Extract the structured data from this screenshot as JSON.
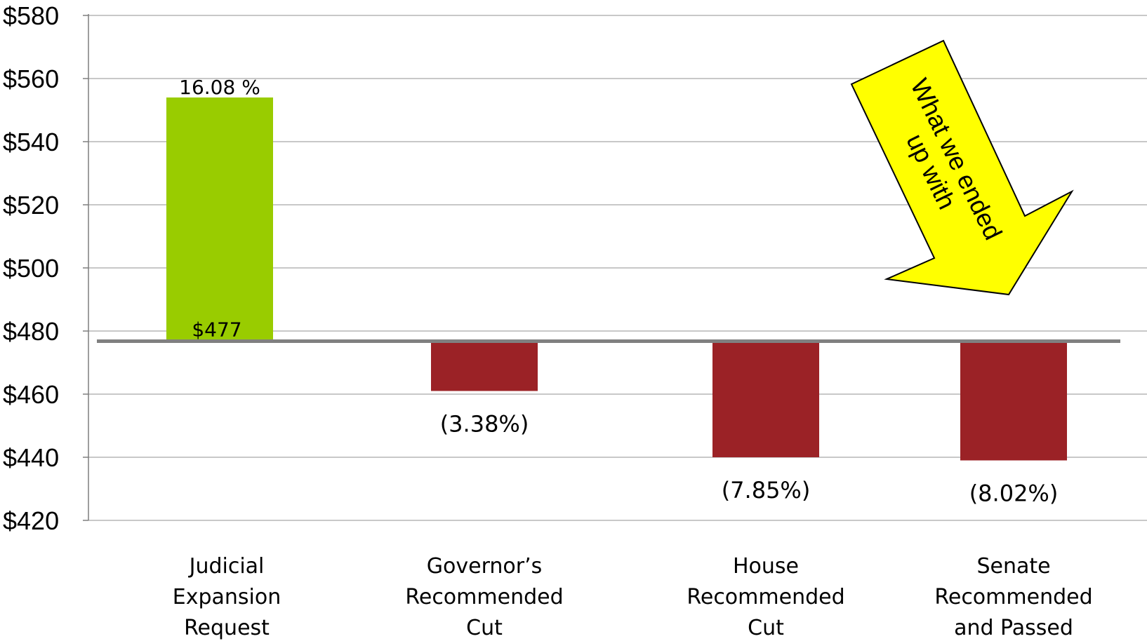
{
  "chart_data": {
    "type": "bar",
    "baseline": 477,
    "baseline_label": "$477",
    "categories": [
      [
        "Judicial",
        "Expansion",
        "Request"
      ],
      [
        "Governor’s",
        "Recommended",
        "Cut"
      ],
      [
        "House",
        "Recommended",
        "Cut"
      ],
      [
        "Senate",
        "Recommended",
        "and Passed"
      ]
    ],
    "values": [
      554,
      461,
      440,
      439
    ],
    "data_labels": [
      "16.08 %",
      "(3.38%)",
      "(7.85%)",
      "(8.02%)"
    ],
    "yticks": [
      "$580",
      "$560",
      "$540",
      "$520",
      "$500",
      "$480",
      "$460",
      "$440",
      "$420"
    ],
    "ylim": [
      420,
      580
    ],
    "grid": true,
    "colors": {
      "increase": "#99cc00",
      "decrease": "#9b2226",
      "baseline": "#808080",
      "grid": "#a6a6a6"
    },
    "annotation": {
      "lines": [
        "What we ended",
        "up with"
      ],
      "fill": "#ffff00"
    }
  }
}
